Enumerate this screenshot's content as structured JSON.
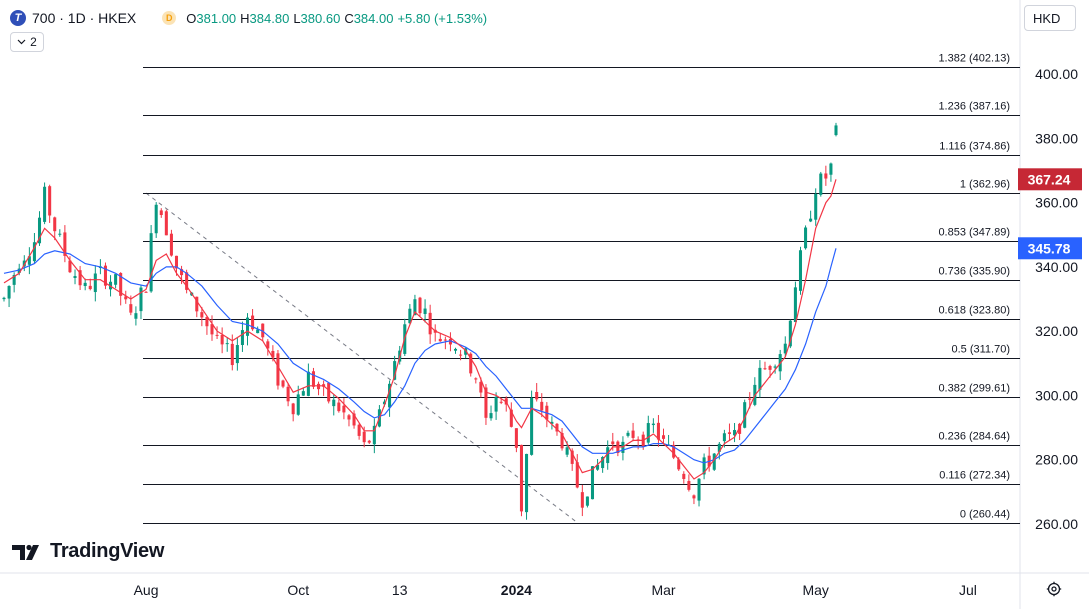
{
  "header": {
    "symbol": "700 · 1D · HKEX",
    "symbol_icon_letter": "T",
    "source_icon_letter": "D",
    "ohlc": {
      "open_label": "O",
      "open": "381.00",
      "high_label": "H",
      "high": "384.80",
      "low_label": "L",
      "low": "380.60",
      "close_label": "C",
      "close": "384.00",
      "change": "+5.80 (+1.53%)"
    },
    "indicators_count": "2",
    "currency": "HKD"
  },
  "logo": {
    "text": "TradingView"
  },
  "icons": {
    "settings": "gear-icon",
    "collapse": "chevron-down-icon"
  },
  "colors": {
    "up": "#089981",
    "down": "#f23645",
    "ma_fast": "#f23645",
    "ma_slow": "#2962ff",
    "fib_line": "#131722",
    "fast_label_bg": "#c62835",
    "slow_label_bg": "#2962ff"
  },
  "chart_data": {
    "type": "candlestick",
    "symbol": "700",
    "exchange": "HKEX",
    "interval": "1D",
    "y_axis": {
      "ticks": [
        "260.00",
        "280.00",
        "300.00",
        "320.00",
        "340.00",
        "360.00",
        "380.00",
        "400.00"
      ],
      "range": [
        248,
        412
      ]
    },
    "x_axis": {
      "ticks": [
        "Aug",
        "Oct",
        "13",
        "2024",
        "Mar",
        "May",
        "Jul"
      ]
    },
    "price_labels": [
      {
        "value": "367.24",
        "kind": "ma-fast"
      },
      {
        "value": "345.78",
        "kind": "ma-slow"
      }
    ],
    "fibonacci": {
      "from": 362.96,
      "to": 260.44,
      "levels": [
        {
          "ratio": "1.382",
          "price": "402.13",
          "label": "1.382 (402.13)"
        },
        {
          "ratio": "1.236",
          "price": "387.16",
          "label": "1.236 (387.16)"
        },
        {
          "ratio": "1.116",
          "price": "374.86",
          "label": "1.116 (374.86)"
        },
        {
          "ratio": "1",
          "price": "362.96",
          "label": "1 (362.96)"
        },
        {
          "ratio": "0.853",
          "price": "347.89",
          "label": "0.853 (347.89)"
        },
        {
          "ratio": "0.736",
          "price": "335.90",
          "label": "0.736 (335.90)"
        },
        {
          "ratio": "0.618",
          "price": "323.80",
          "label": "0.618 (323.80)"
        },
        {
          "ratio": "0.5",
          "price": "311.70",
          "label": "0.5 (311.70)"
        },
        {
          "ratio": "0.382",
          "price": "299.61",
          "label": "0.382 (299.61)"
        },
        {
          "ratio": "0.236",
          "price": "284.64",
          "label": "0.236 (284.64)"
        },
        {
          "ratio": "0.116",
          "price": "272.34",
          "label": "0.116 (272.34)"
        },
        {
          "ratio": "0",
          "price": "260.44",
          "label": "0 (260.44)"
        }
      ]
    },
    "close_path": [
      [
        0,
        330
      ],
      [
        3,
        342
      ],
      [
        6,
        348
      ],
      [
        8,
        362
      ],
      [
        10,
        352
      ],
      [
        13,
        340
      ],
      [
        16,
        333
      ],
      [
        19,
        338
      ],
      [
        22,
        335
      ],
      [
        25,
        324
      ],
      [
        28,
        335
      ],
      [
        30,
        362
      ],
      [
        32,
        352
      ],
      [
        34,
        340
      ],
      [
        36,
        332
      ],
      [
        39,
        325
      ],
      [
        42,
        316
      ],
      [
        45,
        312
      ],
      [
        48,
        325
      ],
      [
        51,
        318
      ],
      [
        54,
        305
      ],
      [
        57,
        297
      ],
      [
        60,
        306
      ],
      [
        63,
        300
      ],
      [
        66,
        296
      ],
      [
        69,
        290
      ],
      [
        71,
        284
      ],
      [
        73,
        288
      ],
      [
        75,
        299
      ],
      [
        77,
        310
      ],
      [
        79,
        322
      ],
      [
        81,
        330
      ],
      [
        83,
        326
      ],
      [
        85,
        318
      ],
      [
        88,
        318
      ],
      [
        91,
        312
      ],
      [
        93,
        306
      ],
      [
        95,
        292
      ],
      [
        97,
        300
      ],
      [
        99,
        296
      ],
      [
        101,
        285
      ],
      [
        102,
        265
      ],
      [
        104,
        298
      ],
      [
        106,
        296
      ],
      [
        108,
        290
      ],
      [
        110,
        286
      ],
      [
        112,
        276
      ],
      [
        114,
        268
      ],
      [
        116,
        275
      ],
      [
        118,
        281
      ],
      [
        120,
        286
      ],
      [
        122,
        284
      ],
      [
        124,
        288
      ],
      [
        126,
        287
      ],
      [
        128,
        290
      ],
      [
        130,
        285
      ],
      [
        132,
        281
      ],
      [
        134,
        276
      ],
      [
        136,
        270
      ],
      [
        138,
        278
      ],
      [
        140,
        282
      ],
      [
        142,
        286
      ],
      [
        144,
        287
      ],
      [
        146,
        295
      ],
      [
        148,
        305
      ],
      [
        150,
        308
      ],
      [
        152,
        312
      ],
      [
        154,
        316
      ],
      [
        156,
        335
      ],
      [
        158,
        350
      ],
      [
        160,
        365
      ],
      [
        162,
        368
      ],
      [
        163,
        371
      ],
      [
        164,
        384
      ]
    ],
    "ma_fast_path": [
      [
        0,
        335
      ],
      [
        3,
        338
      ],
      [
        6,
        346
      ],
      [
        8,
        352
      ],
      [
        10,
        349
      ],
      [
        13,
        342
      ],
      [
        16,
        336
      ],
      [
        19,
        336
      ],
      [
        22,
        333
      ],
      [
        25,
        330
      ],
      [
        28,
        333
      ],
      [
        30,
        342
      ],
      [
        32,
        344
      ],
      [
        34,
        338
      ],
      [
        36,
        334
      ],
      [
        39,
        327
      ],
      [
        42,
        320
      ],
      [
        45,
        317
      ],
      [
        48,
        320
      ],
      [
        51,
        317
      ],
      [
        54,
        309
      ],
      [
        57,
        301
      ],
      [
        60,
        303
      ],
      [
        63,
        303
      ],
      [
        66,
        299
      ],
      [
        69,
        294
      ],
      [
        71,
        289
      ],
      [
        73,
        289
      ],
      [
        75,
        297
      ],
      [
        77,
        306
      ],
      [
        79,
        318
      ],
      [
        81,
        326
      ],
      [
        83,
        323
      ],
      [
        85,
        320
      ],
      [
        88,
        318
      ],
      [
        91,
        314
      ],
      [
        93,
        309
      ],
      [
        95,
        301
      ],
      [
        97,
        300
      ],
      [
        99,
        298
      ],
      [
        101,
        292
      ],
      [
        102,
        290
      ],
      [
        104,
        296
      ],
      [
        106,
        294
      ],
      [
        108,
        291
      ],
      [
        110,
        288
      ],
      [
        112,
        282
      ],
      [
        114,
        276
      ],
      [
        116,
        277
      ],
      [
        118,
        280
      ],
      [
        120,
        284
      ],
      [
        122,
        284
      ],
      [
        124,
        286
      ],
      [
        126,
        286
      ],
      [
        128,
        288
      ],
      [
        130,
        285
      ],
      [
        132,
        282
      ],
      [
        134,
        278
      ],
      [
        136,
        274
      ],
      [
        138,
        276
      ],
      [
        140,
        280
      ],
      [
        142,
        285
      ],
      [
        144,
        287
      ],
      [
        146,
        293
      ],
      [
        148,
        300
      ],
      [
        150,
        304
      ],
      [
        152,
        308
      ],
      [
        154,
        312
      ],
      [
        156,
        322
      ],
      [
        158,
        336
      ],
      [
        160,
        352
      ],
      [
        162,
        360
      ],
      [
        163,
        362
      ],
      [
        164,
        367.24
      ]
    ],
    "ma_slow_path": [
      [
        0,
        338
      ],
      [
        3,
        339
      ],
      [
        6,
        341
      ],
      [
        8,
        344
      ],
      [
        10,
        345
      ],
      [
        13,
        344
      ],
      [
        16,
        341
      ],
      [
        19,
        340
      ],
      [
        22,
        338
      ],
      [
        25,
        335
      ],
      [
        28,
        334
      ],
      [
        30,
        338
      ],
      [
        32,
        340
      ],
      [
        34,
        340
      ],
      [
        36,
        338
      ],
      [
        39,
        334
      ],
      [
        42,
        328
      ],
      [
        45,
        323
      ],
      [
        48,
        322
      ],
      [
        51,
        320
      ],
      [
        54,
        316
      ],
      [
        57,
        310
      ],
      [
        60,
        307
      ],
      [
        63,
        305
      ],
      [
        66,
        302
      ],
      [
        69,
        298
      ],
      [
        71,
        295
      ],
      [
        73,
        293
      ],
      [
        75,
        294
      ],
      [
        77,
        298
      ],
      [
        79,
        303
      ],
      [
        81,
        310
      ],
      [
        83,
        314
      ],
      [
        85,
        316
      ],
      [
        88,
        317
      ],
      [
        91,
        315
      ],
      [
        93,
        313
      ],
      [
        95,
        309
      ],
      [
        97,
        306
      ],
      [
        99,
        302
      ],
      [
        101,
        298
      ],
      [
        102,
        296
      ],
      [
        104,
        296
      ],
      [
        106,
        295
      ],
      [
        108,
        294
      ],
      [
        110,
        292
      ],
      [
        112,
        288
      ],
      [
        114,
        284
      ],
      [
        116,
        282
      ],
      [
        118,
        282
      ],
      [
        120,
        282
      ],
      [
        122,
        283
      ],
      [
        124,
        284
      ],
      [
        126,
        284
      ],
      [
        128,
        285
      ],
      [
        130,
        285
      ],
      [
        132,
        284
      ],
      [
        134,
        282
      ],
      [
        136,
        280
      ],
      [
        138,
        279
      ],
      [
        140,
        280
      ],
      [
        142,
        282
      ],
      [
        144,
        283
      ],
      [
        146,
        286
      ],
      [
        148,
        290
      ],
      [
        150,
        294
      ],
      [
        152,
        298
      ],
      [
        154,
        302
      ],
      [
        156,
        308
      ],
      [
        158,
        316
      ],
      [
        160,
        326
      ],
      [
        162,
        334
      ],
      [
        163,
        340
      ],
      [
        164,
        345.78
      ]
    ],
    "x_tick_positions": [
      28,
      58,
      78,
      101,
      130,
      160,
      190
    ]
  }
}
